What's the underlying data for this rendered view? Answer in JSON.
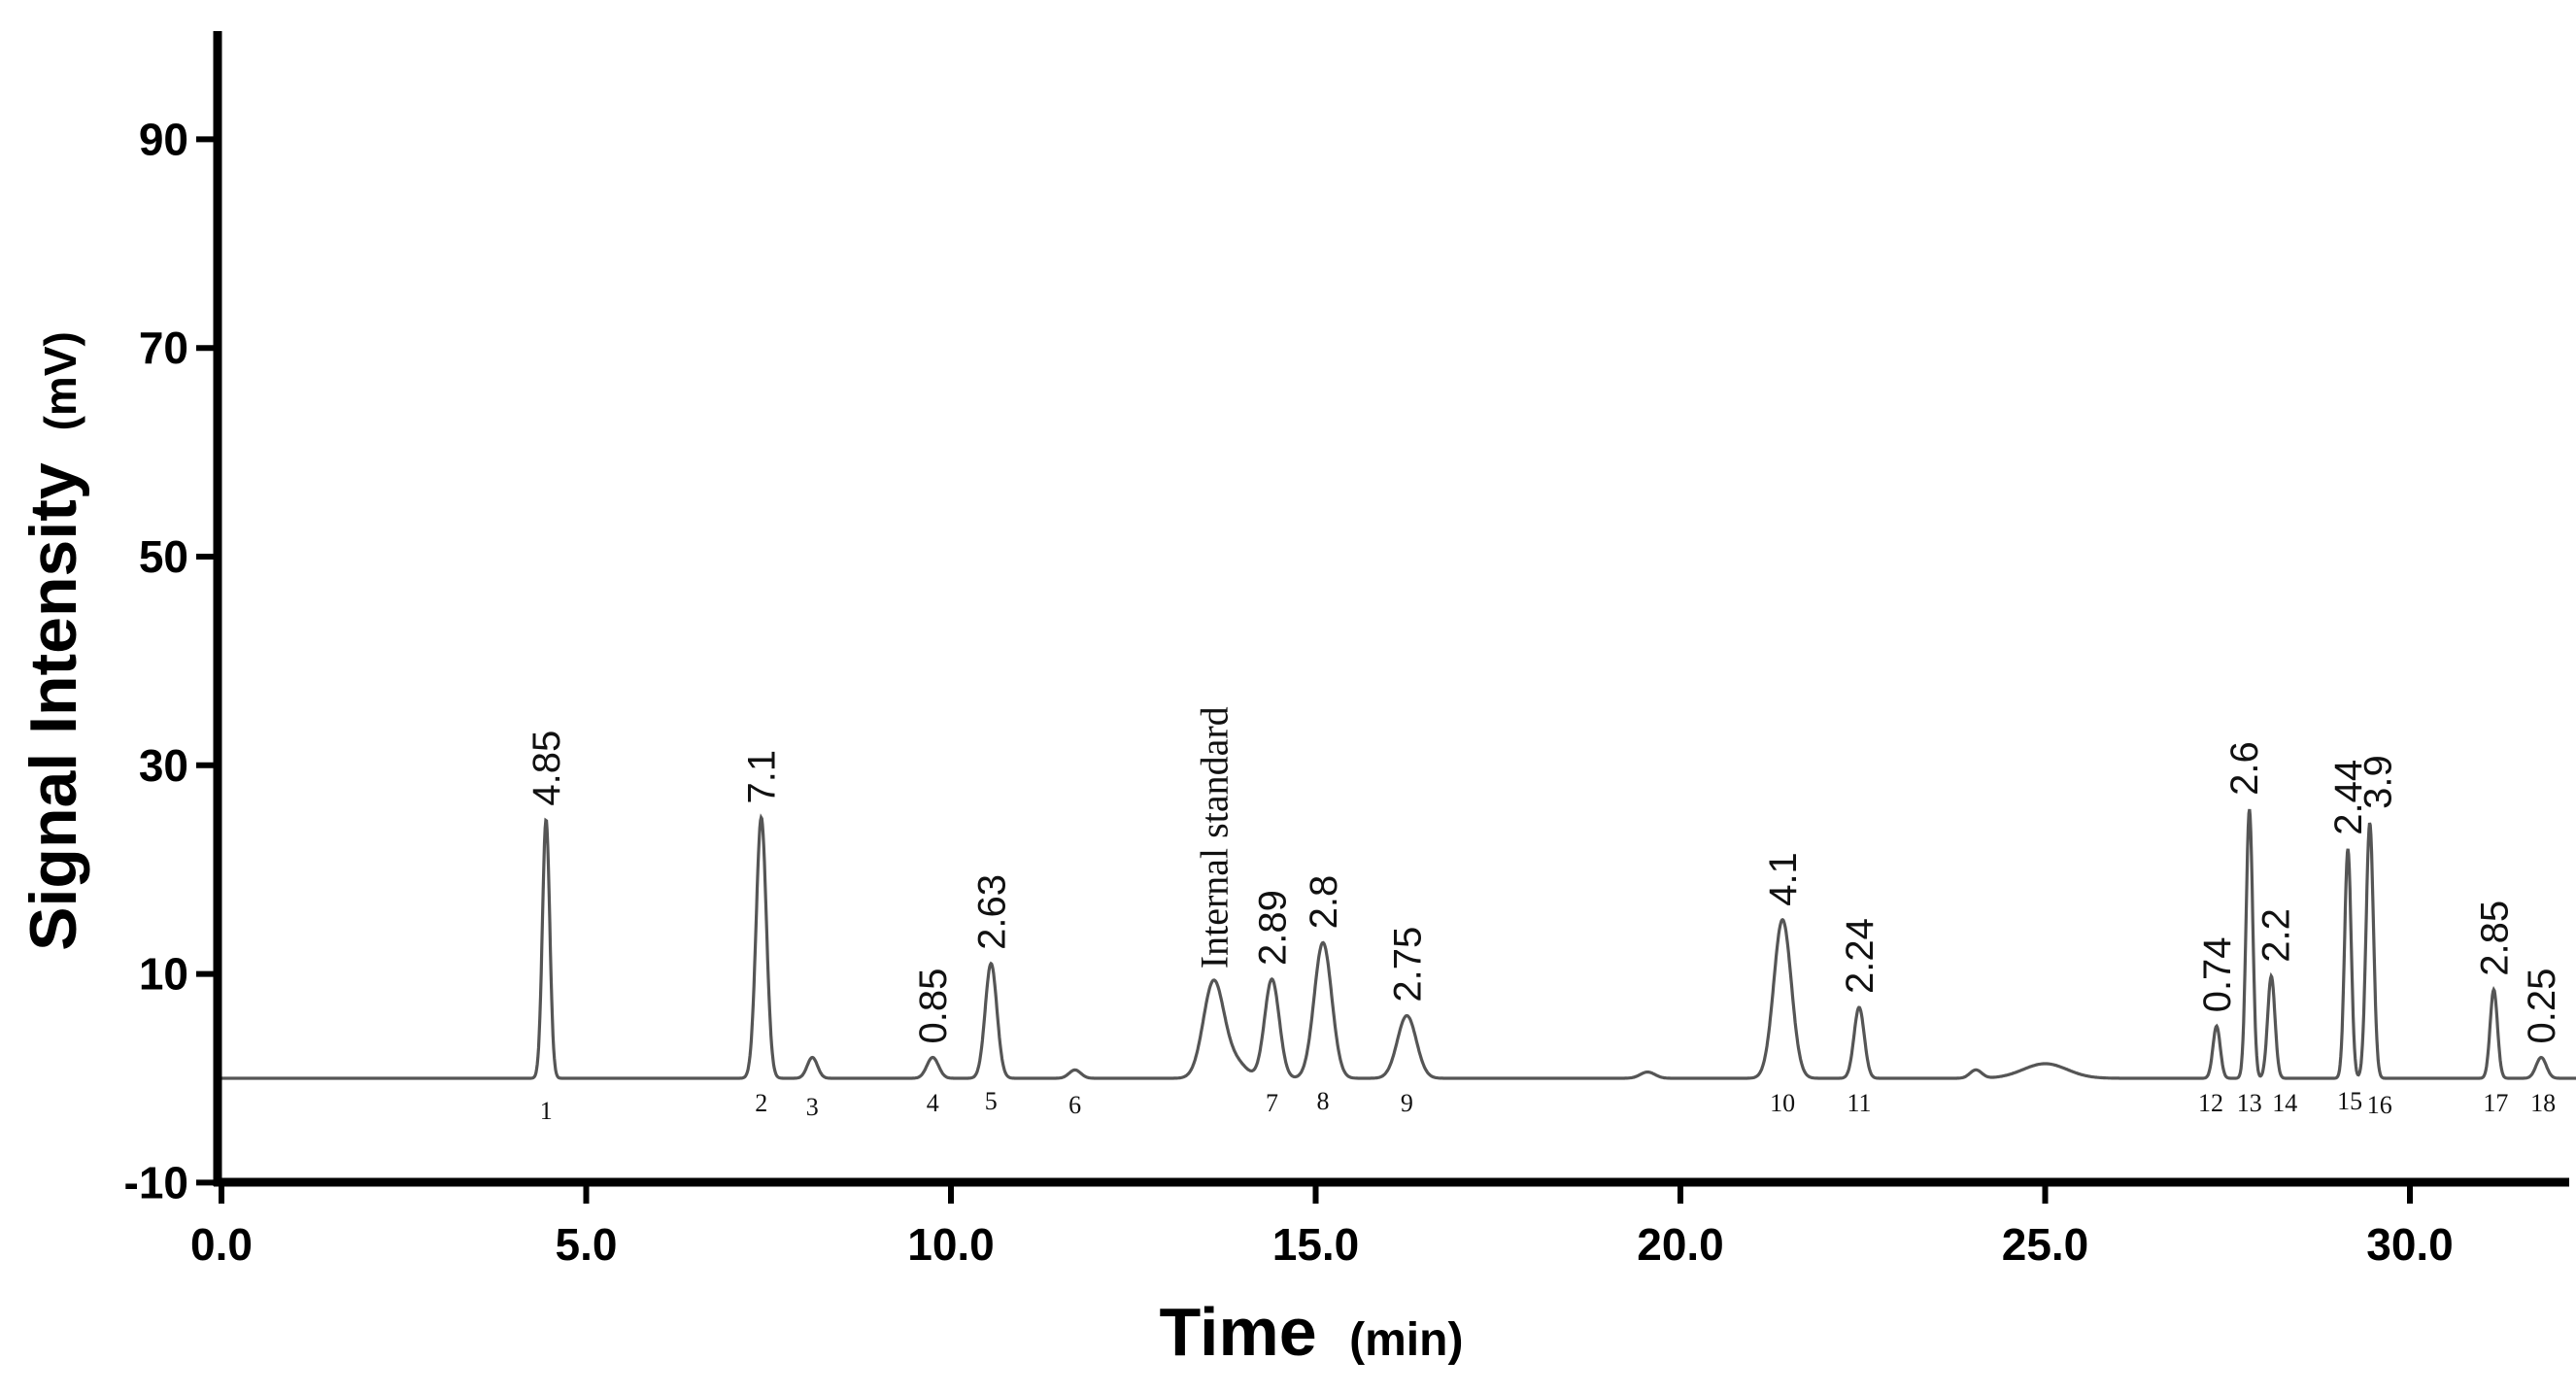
{
  "chart_data": {
    "type": "line",
    "title": "",
    "xlabel": "Time",
    "xlabel_unit": "(min)",
    "ylabel": "Signal Intensity",
    "ylabel_unit": "(mV)",
    "xlim": [
      0,
      32.5
    ],
    "ylim": [
      -10,
      100
    ],
    "x_ticks": [
      0,
      5,
      10,
      15,
      20,
      25,
      30
    ],
    "x_tick_labels": [
      "0.0",
      "5.0",
      "10.0",
      "15.0",
      "20.0",
      "25.0",
      "30.0"
    ],
    "y_ticks": [
      -10,
      10,
      30,
      50,
      70,
      90
    ],
    "y_tick_labels": [
      "-10",
      "10",
      "30",
      "50",
      "70",
      "90"
    ],
    "baseline": 0,
    "internal_standard": {
      "label": "Internal standard",
      "time": 13.6,
      "height": 9.2,
      "width": 0.14
    },
    "peaks": [
      {
        "id": "1",
        "time": 4.45,
        "height": 24.8,
        "width": 0.05,
        "label": "4.85"
      },
      {
        "id": "2",
        "time": 7.4,
        "height": 25.0,
        "width": 0.07,
        "label": "7.1"
      },
      {
        "id": "3",
        "time": 8.1,
        "height": 2.0,
        "width": 0.07,
        "label": ""
      },
      {
        "id": "4",
        "time": 9.75,
        "height": 2.0,
        "width": 0.08,
        "label": "0.85"
      },
      {
        "id": "5",
        "time": 10.55,
        "height": 11.0,
        "width": 0.08,
        "label": "2.63"
      },
      {
        "id": "6",
        "time": 11.7,
        "height": 0.8,
        "width": 0.08,
        "label": ""
      },
      {
        "id": "7",
        "time": 14.4,
        "height": 9.5,
        "width": 0.1,
        "label": "2.89"
      },
      {
        "id": "8",
        "time": 15.1,
        "height": 13.0,
        "width": 0.12,
        "label": "2.8"
      },
      {
        "id": "9",
        "time": 16.25,
        "height": 6.0,
        "width": 0.13,
        "label": "2.75"
      },
      {
        "id": "10",
        "time": 21.4,
        "height": 15.2,
        "width": 0.12,
        "label": "4.1"
      },
      {
        "id": "11",
        "time": 22.45,
        "height": 6.8,
        "width": 0.07,
        "label": "2.24"
      },
      {
        "id": "12",
        "time": 27.35,
        "height": 5.0,
        "width": 0.05,
        "label": "0.74"
      },
      {
        "id": "13",
        "time": 27.8,
        "height": 25.8,
        "width": 0.045,
        "label": "2.6"
      },
      {
        "id": "14",
        "time": 28.1,
        "height": 9.8,
        "width": 0.05,
        "label": "2.2"
      },
      {
        "id": "15",
        "time": 29.15,
        "height": 22.0,
        "width": 0.045,
        "label": "2.44"
      },
      {
        "id": "16",
        "time": 29.45,
        "height": 24.5,
        "width": 0.05,
        "label": "3.9"
      },
      {
        "id": "17",
        "time": 31.15,
        "height": 8.5,
        "width": 0.05,
        "label": "2.85"
      },
      {
        "id": "18",
        "time": 31.8,
        "height": 2.0,
        "width": 0.07,
        "label": "0.25"
      }
    ],
    "minor_bumps": [
      {
        "time": 19.55,
        "height": 0.6,
        "width": 0.1
      },
      {
        "time": 24.05,
        "height": 0.8,
        "width": 0.08
      },
      {
        "time": 25.0,
        "height": 1.4,
        "width": 0.3
      }
    ]
  }
}
